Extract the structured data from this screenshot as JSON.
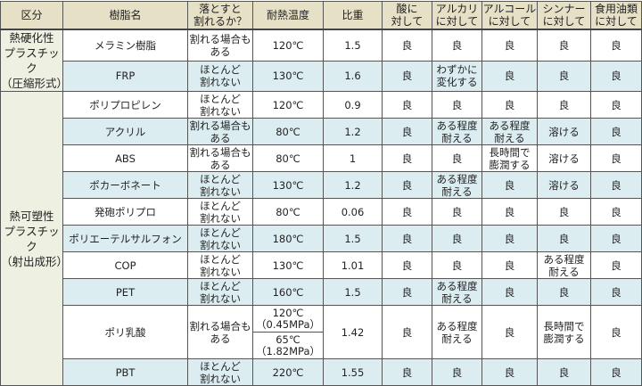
{
  "headers": [
    "区分",
    "樹脂名",
    "落とすと\n割れるか？",
    "耐熱温度",
    "比重",
    "酸に\n対して",
    "アルカリ\nに対して",
    "アルコール\nに対して",
    "シンナー\nに対して",
    "食用油類\nに対して"
  ],
  "categories": [
    {
      "label": "熱硬化性\nプラスチック\n（圧縮形式）",
      "rows": 2
    },
    {
      "label": "熱可塑性\nプラスチック\n（射出成形）",
      "rows": 10
    }
  ],
  "rows": [
    {
      "name": "メラミン樹脂",
      "drop": "割れる場合も\nある",
      "heat": "120℃",
      "sg": "1.5",
      "acid": "良",
      "alkali": "良",
      "alcohol": "良",
      "thinner": "良",
      "oil": "良"
    },
    {
      "name": "FRP",
      "drop": "ほとんど\n割れない",
      "heat": "130℃",
      "sg": "1.6",
      "acid": "良",
      "alkali": "わずかに\n変化する",
      "alcohol": "良",
      "thinner": "良",
      "oil": "良"
    },
    {
      "name": "ポリプロピレン",
      "drop": "ほとんど\n割れない",
      "heat": "120℃",
      "sg": "0.9",
      "acid": "良",
      "alkali": "良",
      "alcohol": "良",
      "thinner": "良",
      "oil": "良"
    },
    {
      "name": "アクリル",
      "drop": "割れる場合も\nある",
      "heat": "80℃",
      "sg": "1.2",
      "acid": "良",
      "alkali": "ある程度\n耐える",
      "alcohol": "ある程度\n耐える",
      "thinner": "溶ける",
      "oil": "良"
    },
    {
      "name": "ABS",
      "drop": "割れる場合も\nある",
      "heat": "80℃",
      "sg": "1",
      "acid": "良",
      "alkali": "良",
      "alcohol": "長時間で\n膨潤する",
      "thinner": "溶ける",
      "oil": "良"
    },
    {
      "name": "ポカーボネート",
      "drop": "ほとんど\n割れない",
      "heat": "130℃",
      "sg": "1.2",
      "acid": "良",
      "alkali": "ある程度\n耐える",
      "alcohol": "良",
      "thinner": "溶ける",
      "oil": "良"
    },
    {
      "name": "発砲ポリプロ",
      "drop": "ほとんど\n割れない",
      "heat": "80℃",
      "sg": "0.06",
      "acid": "良",
      "alkali": "良",
      "alcohol": "良",
      "thinner": "良",
      "oil": "良"
    },
    {
      "name": "ポリエーテルサルフォン",
      "drop": "ほとんど\n割れない",
      "heat": "180℃",
      "sg": "1.5",
      "acid": "良",
      "alkali": "良",
      "alcohol": "良",
      "thinner": "良",
      "oil": "良"
    },
    {
      "name": "COP",
      "drop": "ほとんど\n割れない",
      "heat": "130℃",
      "sg": "1.01",
      "acid": "良",
      "alkali": "良",
      "alcohol": "良",
      "thinner": "ある程度\n耐える",
      "oil": "良"
    },
    {
      "name": "PET",
      "drop": "ほとんど\n割れない",
      "heat": "160℃",
      "sg": "1.5",
      "acid": "良",
      "alkali": "ある程度\n耐える",
      "alcohol": "良",
      "thinner": "良",
      "oil": "良"
    },
    {
      "name": "ポリ乳酸",
      "drop": "割れる場合も\nある",
      "heat": "120℃\n（0.45MPa）",
      "heat2": "65℃\n（1.82MPa）",
      "sg": "1.42",
      "acid": "良",
      "alkali": "ある程度\n耐える",
      "alcohol": "良",
      "thinner": "長時間で\n膨潤する",
      "oil": "良"
    },
    {
      "name": "PBT",
      "drop": "ほとんど\n割れない",
      "heat": "220℃",
      "sg": "1.55",
      "acid": "良",
      "alkali": "良",
      "alcohol": "良",
      "thinner": "良",
      "oil": "良"
    }
  ],
  "colors": {
    "header_bg": "#e6e0c6",
    "category_bg": "#eef0e1",
    "stripe_bg": "#dcedf2",
    "border": "#555555"
  }
}
